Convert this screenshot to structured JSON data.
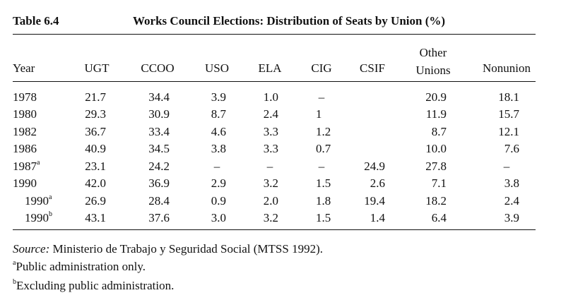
{
  "header": {
    "label": "Table 6.4",
    "title": "Works Council Elections: Distribution of Seats by Union (%)"
  },
  "table": {
    "columns": [
      "Year",
      "UGT",
      "CCOO",
      "USO",
      "ELA",
      "CIG",
      "CSIF",
      "Other Unions",
      "Nonunion"
    ],
    "rows": [
      {
        "year": "1978",
        "note": null,
        "cells": [
          "21.7",
          "34.4",
          "3.9",
          "1.0",
          "–",
          null,
          "20.9",
          "18.1"
        ]
      },
      {
        "year": "1980",
        "note": null,
        "cells": [
          "29.3",
          "30.9",
          "8.7",
          "2.4",
          "1",
          null,
          "11.9",
          "15.7"
        ]
      },
      {
        "year": "1982",
        "note": null,
        "cells": [
          "36.7",
          "33.4",
          "4.6",
          "3.3",
          "1.2",
          null,
          "8.7",
          "12.1"
        ]
      },
      {
        "year": "1986",
        "note": null,
        "cells": [
          "40.9",
          "34.5",
          "3.8",
          "3.3",
          "0.7",
          null,
          "10.0",
          "7.6"
        ]
      },
      {
        "year": "1987",
        "note": "a",
        "cells": [
          "23.1",
          "24.2",
          "–",
          "–",
          "–",
          "24.9",
          "27.8",
          "–"
        ]
      },
      {
        "year": "1990",
        "note": null,
        "cells": [
          "42.0",
          "36.9",
          "2.9",
          "3.2",
          "1.5",
          "2.6",
          "7.1",
          "3.8"
        ]
      },
      {
        "year": "1990",
        "note": "a",
        "cells": [
          "26.9",
          "28.4",
          "0.9",
          "2.0",
          "1.8",
          "19.4",
          "18.2",
          "2.4"
        ]
      },
      {
        "year": "1990",
        "note": "b",
        "cells": [
          "43.1",
          "37.6",
          "3.0",
          "3.2",
          "1.5",
          "1.4",
          "6.4",
          "3.9"
        ]
      }
    ]
  },
  "source": {
    "label": "Source:",
    "text": "Ministerio de Trabajo y Seguridad Social (MTSS 1992)."
  },
  "notes": [
    {
      "mark": "a",
      "text": "Public administration only."
    },
    {
      "mark": "b",
      "text": "Excluding public administration."
    }
  ]
}
